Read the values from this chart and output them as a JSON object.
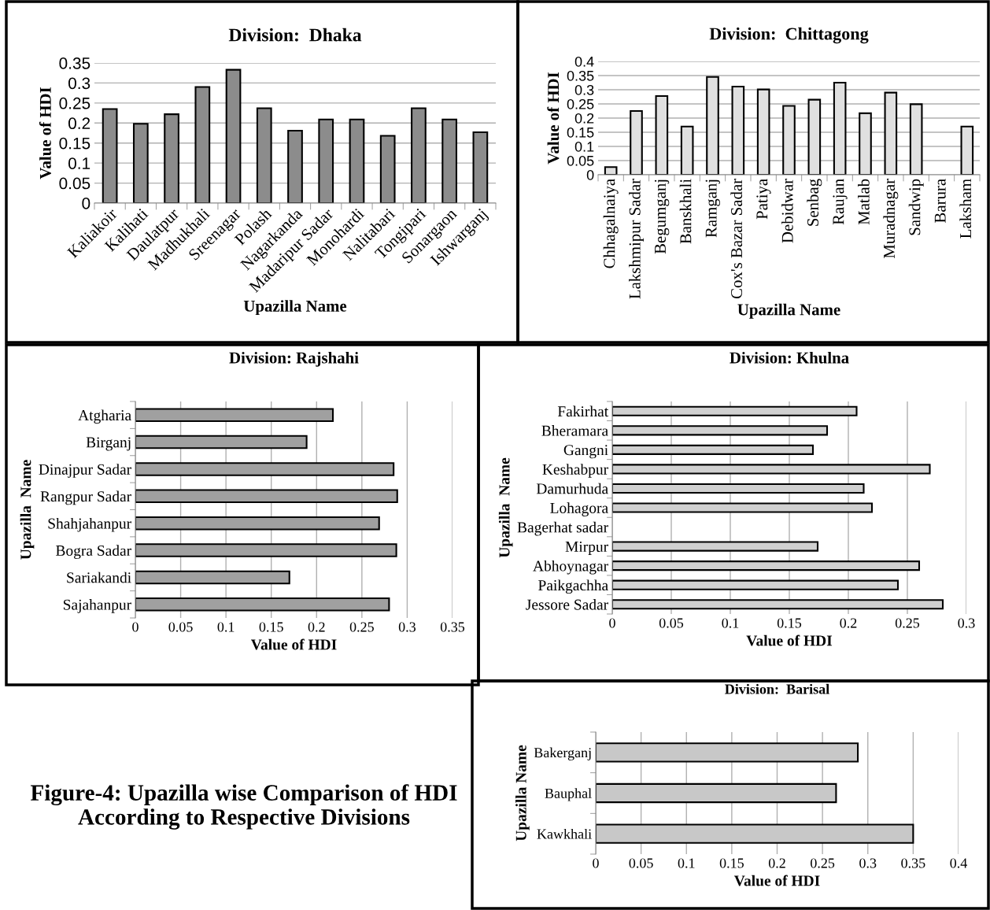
{
  "chart_data": [
    {
      "type": "bar",
      "title": "Division:  Dhaka",
      "xlabel": "Upazilla Name",
      "ylabel": "Value of HDI",
      "categories": [
        "Kaliakoir",
        "Kalihati",
        "Daulatpur",
        "Madhukhali",
        "Sreenagar",
        "Polash",
        "Nagarkanda",
        "Madaripur Sadar",
        "Monohardi",
        "Nalitabari",
        "Tongipari",
        "Sonargaon",
        "Ishwarganj"
      ],
      "values": [
        0.235,
        0.198,
        0.222,
        0.29,
        0.333,
        0.237,
        0.181,
        0.209,
        0.209,
        0.168,
        0.237,
        0.209,
        0.177
      ],
      "color": "#8c8c8c",
      "ylim": [
        0,
        0.35
      ],
      "yticks": [
        0,
        0.05,
        0.1,
        0.15,
        0.2,
        0.25,
        0.3,
        0.35
      ],
      "grid": "y"
    },
    {
      "type": "bar",
      "title": "Division:  Chittagong",
      "xlabel": "Upazilla Name",
      "ylabel": "Value of HDI",
      "categories": [
        "Chhagalnaiya",
        "Lakshmipur Sadar",
        "Begumganj",
        "Banskhali",
        "Ramganj",
        "Cox's Bazar Sadar",
        "Patiya",
        "Debidwar",
        "Senbag",
        "Raujan",
        "Matlab",
        "Muradnagar",
        "Sandwip",
        "Barura",
        "Laksham"
      ],
      "values": [
        0.027,
        0.225,
        0.278,
        0.17,
        0.345,
        0.311,
        0.301,
        0.243,
        0.265,
        0.325,
        0.217,
        0.29,
        0.249,
        null,
        0.17
      ],
      "color": "#e0e0e0",
      "ylim": [
        0,
        0.4
      ],
      "yticks": [
        0,
        0.05,
        0.1,
        0.15,
        0.2,
        0.25,
        0.3,
        0.35,
        0.4
      ],
      "grid": "y"
    },
    {
      "type": "bar",
      "orientation": "horizontal",
      "title": "Division: Rajshahi",
      "xlabel": "Value of HDI",
      "ylabel": "Upazilla  Name",
      "categories": [
        "Atgharia",
        "Birganj",
        "Dinajpur Sadar",
        "Rangpur Sadar",
        "Shahjahanpur",
        "Bogra Sadar",
        "Sariakandi",
        "Sajahanpur"
      ],
      "values": [
        0.218,
        0.189,
        0.285,
        0.289,
        0.269,
        0.288,
        0.17,
        0.28
      ],
      "color": "#a0a0a0",
      "xlim": [
        0,
        0.35
      ],
      "xticks": [
        0,
        0.05,
        0.1,
        0.15,
        0.2,
        0.25,
        0.3,
        0.35
      ],
      "grid": "x"
    },
    {
      "type": "bar",
      "orientation": "horizontal",
      "title": "Division: Khulna",
      "xlabel": "Value of HDI",
      "ylabel": "Upazilla  Name",
      "categories": [
        "Fakirhat",
        "Bheramara",
        "Gangni",
        "Keshabpur",
        "Damurhuda",
        "Lohagora",
        "Bagerhat sadar",
        "Mirpur",
        "Abhoynagar",
        "Paikgachha",
        "Jessore Sadar"
      ],
      "values": [
        0.207,
        0.182,
        0.17,
        0.269,
        0.213,
        0.22,
        null,
        0.174,
        0.26,
        0.242,
        0.28
      ],
      "color": "#d0d0d0",
      "xlim": [
        0,
        0.3
      ],
      "xticks": [
        0,
        0.05,
        0.1,
        0.15,
        0.2,
        0.25,
        0.3
      ],
      "grid": "x"
    },
    {
      "type": "bar",
      "orientation": "horizontal",
      "title": "Division:  Barisal",
      "xlabel": "Value of HDI",
      "ylabel": "Upazilla Name",
      "categories": [
        "Bakerganj",
        "Bauphal",
        "Kawkhali"
      ],
      "values": [
        0.289,
        0.265,
        0.35
      ],
      "color": "#c8c8c8",
      "xlim": [
        0,
        0.4
      ],
      "xticks": [
        0,
        0.05,
        0.1,
        0.15,
        0.2,
        0.25,
        0.3,
        0.35,
        0.4
      ],
      "grid": "x",
      "annotations": [
        "Figure-4: Upazilla wise Comparison of HDI According to Respective Divisions"
      ]
    }
  ]
}
